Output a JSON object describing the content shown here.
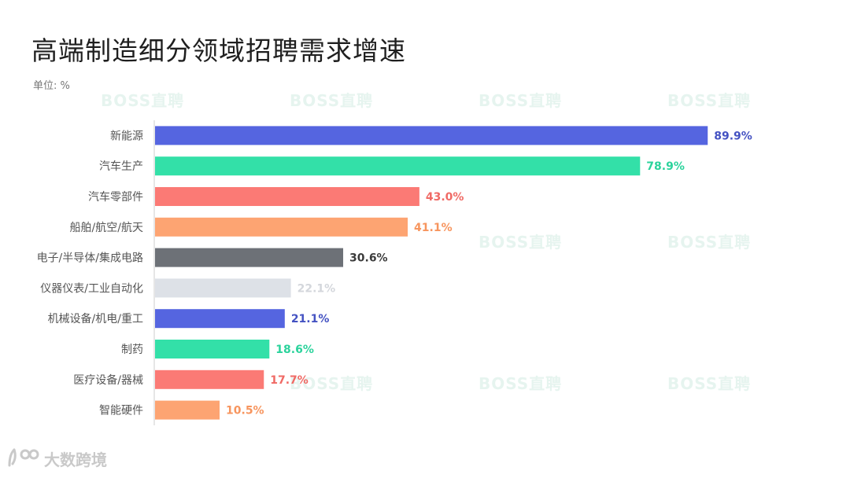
{
  "title": "高端制造细分领域招聘需求增速",
  "unit_label": "单位: %",
  "watermark_text": "BOSS直聘",
  "logo_text": "大数跨境",
  "chart_data": {
    "type": "bar",
    "orientation": "horizontal",
    "categories": [
      "新能源",
      "汽车生产",
      "汽车零部件",
      "船舶/航空/航天",
      "电子/半导体/集成电路",
      "仪器仪表/工业自动化",
      "机械设备/机电/重工",
      "制药",
      "医疗设备/器械",
      "智能硬件"
    ],
    "values": [
      89.9,
      78.9,
      43.0,
      41.1,
      30.6,
      22.1,
      21.1,
      18.6,
      17.7,
      10.5
    ],
    "value_labels": [
      "89.9%",
      "78.9%",
      "43.0%",
      "41.1%",
      "30.6%",
      "22.1%",
      "21.1%",
      "18.6%",
      "17.7%",
      "10.5%"
    ],
    "colors": [
      "#5565e0",
      "#33e0a8",
      "#fb7a75",
      "#fda472",
      "#6d7177",
      "#dde1e7",
      "#5565e0",
      "#33e0a8",
      "#fb7a75",
      "#fda472"
    ],
    "label_colors": [
      "#4452c2",
      "#2bd39c",
      "#f06a65",
      "#f7955e",
      "#3b3b3b",
      "#d4d7dc",
      "#4452c2",
      "#2bd39c",
      "#f06a65",
      "#f7955e"
    ],
    "xlim": [
      0,
      90
    ],
    "grid": false,
    "legend": "none"
  }
}
